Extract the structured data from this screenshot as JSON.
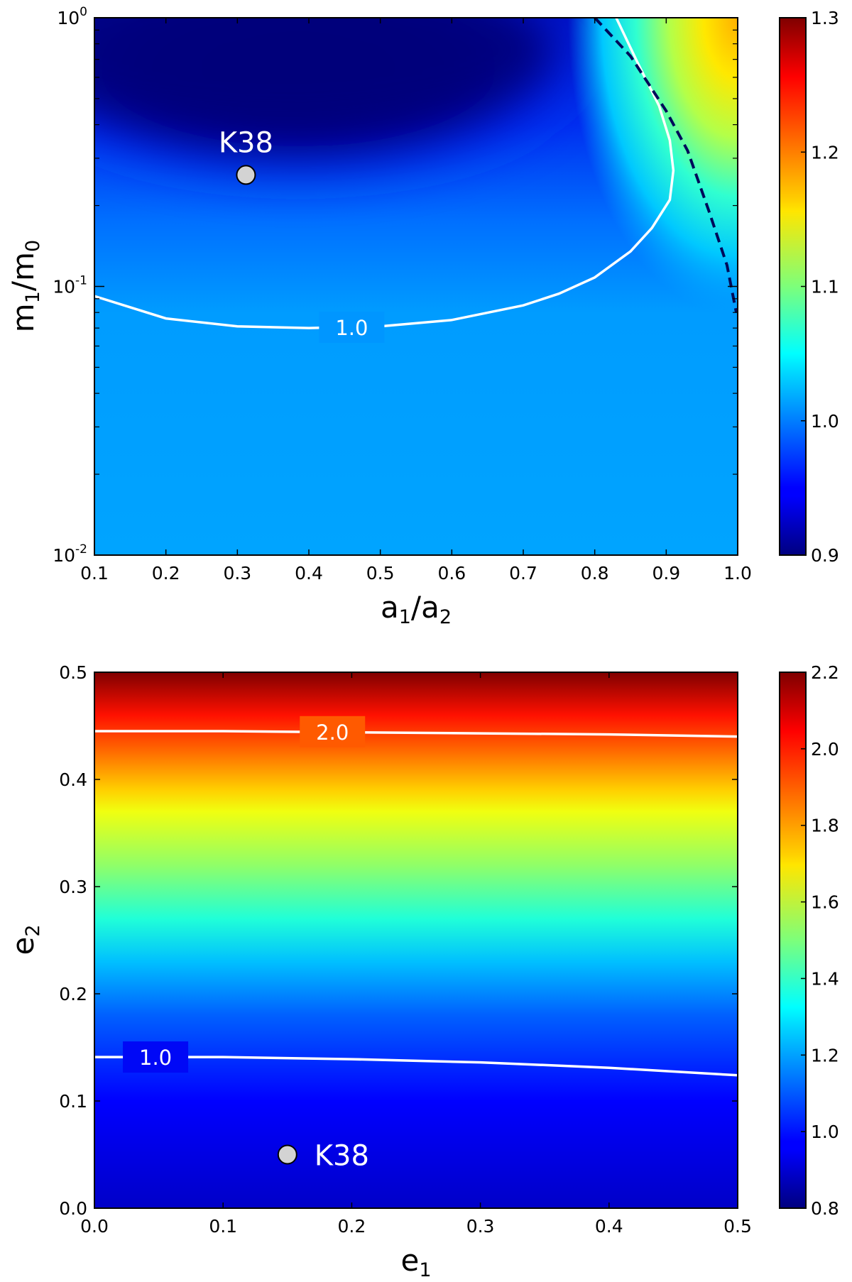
{
  "chart_data": [
    {
      "type": "heatmap",
      "xlabel_main": "a",
      "xlabel_sub1": "1",
      "xlabel_slash": "/a",
      "xlabel_sub2": "2",
      "ylabel_main": "m",
      "ylabel_sub1": "1",
      "ylabel_slash": "/m",
      "ylabel_sub2": "0",
      "x_scale": "linear",
      "y_scale": "log",
      "xlim": [
        0.1,
        1.0
      ],
      "ylim": [
        0.01,
        1.0
      ],
      "x_ticks": [
        "0.1",
        "0.2",
        "0.3",
        "0.4",
        "0.5",
        "0.6",
        "0.7",
        "0.8",
        "0.9",
        "1.0"
      ],
      "y_ticks": [
        {
          "value": 1.0,
          "base": "10",
          "exp": "0"
        },
        {
          "value": 0.1,
          "base": "10",
          "exp": "-1"
        },
        {
          "value": 0.01,
          "base": "10",
          "exp": "-2"
        }
      ],
      "colorbar": {
        "min": 0.9,
        "max": 1.3,
        "ticks": [
          "1.3",
          "1.2",
          "1.1",
          "1.0",
          "0.9"
        ],
        "colormap": "jet"
      },
      "contour_label": "1.0",
      "contour_1p0": [
        {
          "x": 0.1,
          "y": 0.092
        },
        {
          "x": 0.2,
          "y": 0.076
        },
        {
          "x": 0.3,
          "y": 0.071
        },
        {
          "x": 0.4,
          "y": 0.07
        },
        {
          "x": 0.5,
          "y": 0.071
        },
        {
          "x": 0.6,
          "y": 0.075
        },
        {
          "x": 0.7,
          "y": 0.085
        },
        {
          "x": 0.75,
          "y": 0.094
        },
        {
          "x": 0.8,
          "y": 0.108
        },
        {
          "x": 0.85,
          "y": 0.135
        },
        {
          "x": 0.88,
          "y": 0.165
        },
        {
          "x": 0.905,
          "y": 0.21
        },
        {
          "x": 0.91,
          "y": 0.27
        },
        {
          "x": 0.905,
          "y": 0.35
        },
        {
          "x": 0.89,
          "y": 0.47
        },
        {
          "x": 0.86,
          "y": 0.68
        },
        {
          "x": 0.83,
          "y": 1.0
        }
      ],
      "boundary_dashed": [
        {
          "x": 0.8,
          "y": 1.0
        },
        {
          "x": 0.85,
          "y": 0.72
        },
        {
          "x": 0.9,
          "y": 0.45
        },
        {
          "x": 0.93,
          "y": 0.32
        },
        {
          "x": 0.96,
          "y": 0.19
        },
        {
          "x": 0.985,
          "y": 0.12
        },
        {
          "x": 0.998,
          "y": 0.08
        }
      ],
      "point": {
        "label": "K38",
        "x": 0.312,
        "y": 0.26
      }
    },
    {
      "type": "heatmap",
      "xlabel_main": "e",
      "xlabel_sub": "1",
      "ylabel_main": "e",
      "ylabel_sub": "2",
      "x_scale": "linear",
      "y_scale": "linear",
      "xlim": [
        0.0,
        0.5
      ],
      "ylim": [
        0.0,
        0.5
      ],
      "x_ticks": [
        "0.0",
        "0.1",
        "0.2",
        "0.3",
        "0.4",
        "0.5"
      ],
      "y_ticks": [
        "0.0",
        "0.1",
        "0.2",
        "0.3",
        "0.4",
        "0.5"
      ],
      "colorbar": {
        "min": 0.8,
        "max": 2.2,
        "ticks": [
          "2.2",
          "2.0",
          "1.8",
          "1.6",
          "1.4",
          "1.2",
          "1.0",
          "0.8"
        ],
        "colormap": "jet"
      },
      "contour_2p0_label": "2.0",
      "contour_2p0": [
        {
          "x": 0.0,
          "y": 0.445
        },
        {
          "x": 0.1,
          "y": 0.445
        },
        {
          "x": 0.2,
          "y": 0.444
        },
        {
          "x": 0.3,
          "y": 0.443
        },
        {
          "x": 0.4,
          "y": 0.442
        },
        {
          "x": 0.5,
          "y": 0.44
        }
      ],
      "contour_1p0_label": "1.0",
      "contour_1p0": [
        {
          "x": 0.0,
          "y": 0.141
        },
        {
          "x": 0.1,
          "y": 0.141
        },
        {
          "x": 0.2,
          "y": 0.139
        },
        {
          "x": 0.3,
          "y": 0.136
        },
        {
          "x": 0.4,
          "y": 0.131
        },
        {
          "x": 0.5,
          "y": 0.124
        }
      ],
      "point": {
        "label": "K38",
        "x": 0.15,
        "y": 0.05
      }
    }
  ]
}
